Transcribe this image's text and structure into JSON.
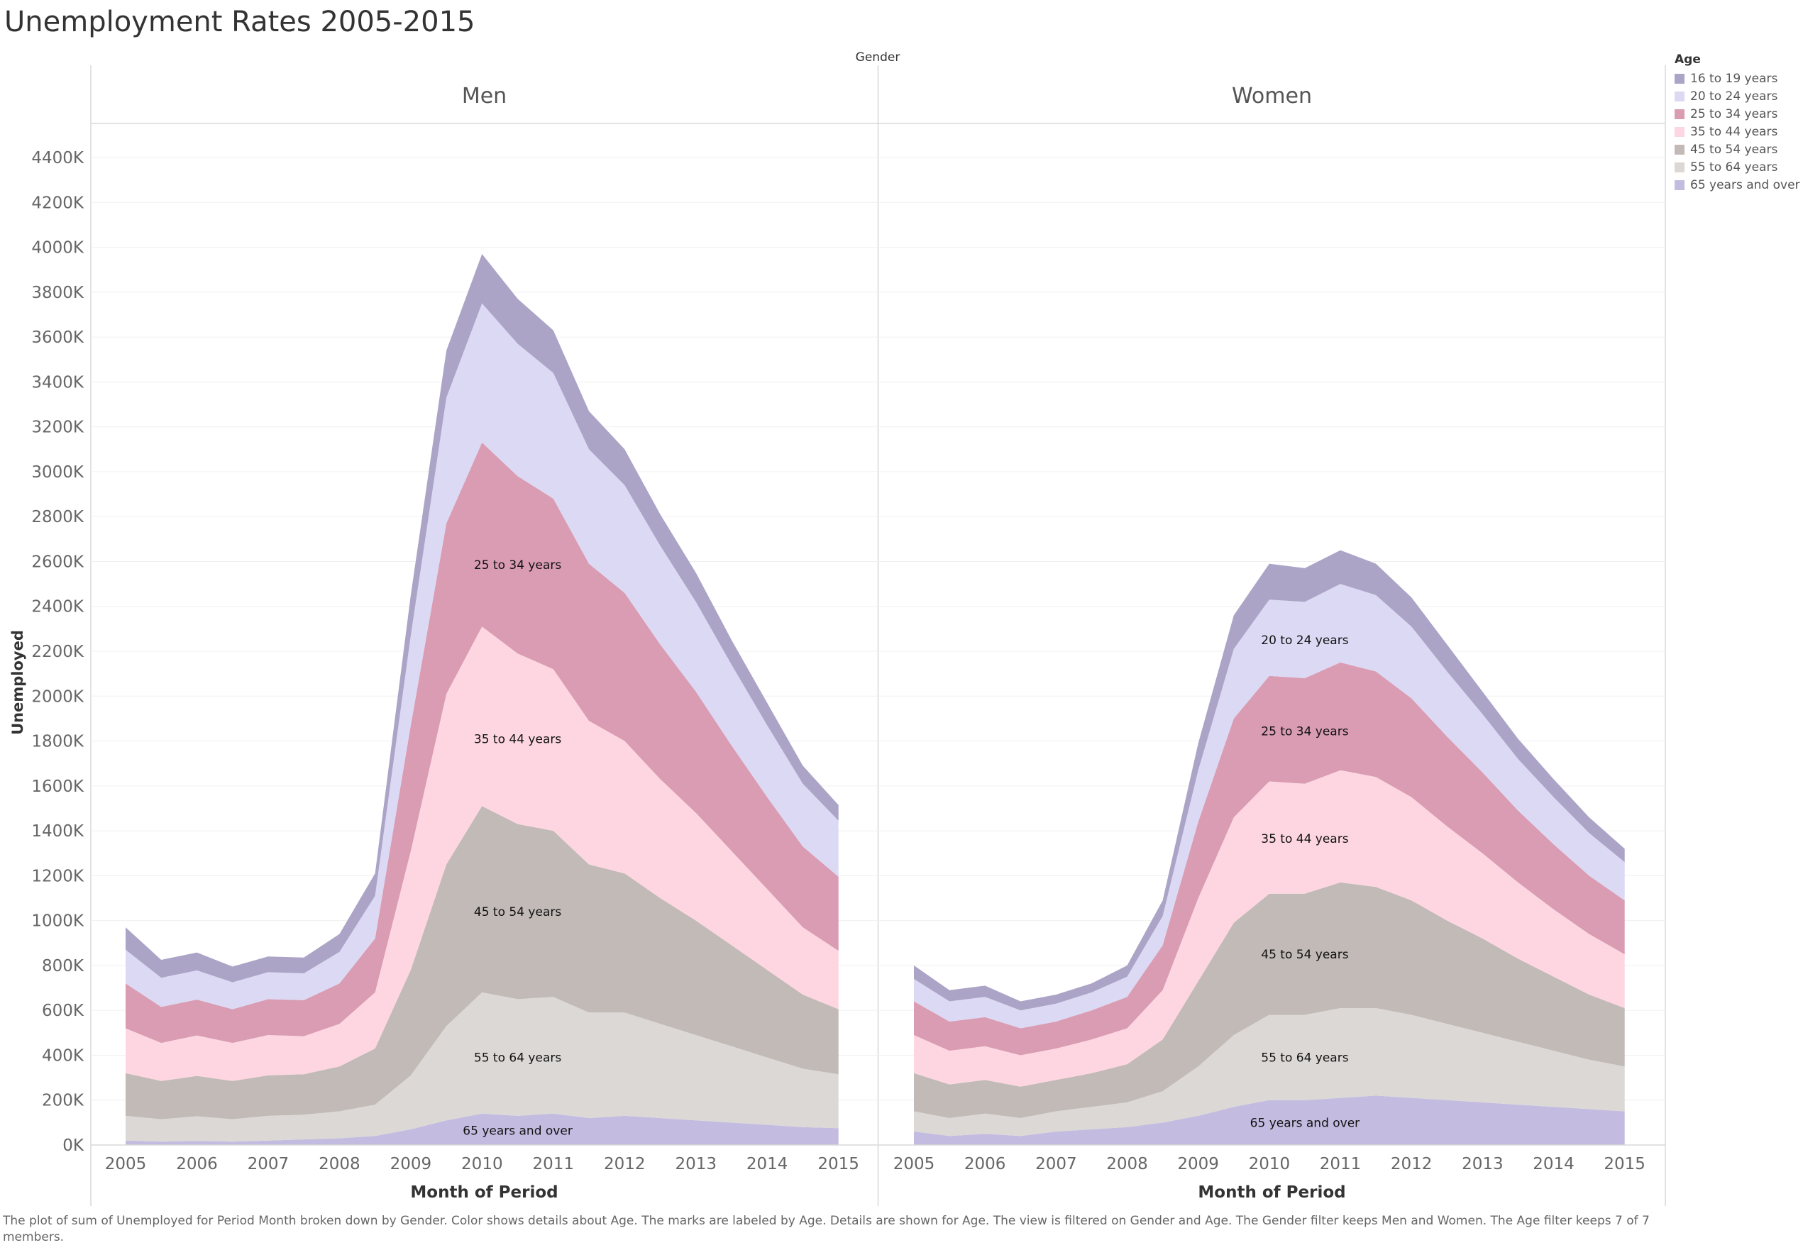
{
  "title": "Unemployment Rates 2005-2015",
  "footnote": "The plot of sum of Unemployed for Period Month broken down by Gender.  Color shows details about Age.  The marks are labeled by Age.  Details are shown for Age. The view is filtered on Gender and Age. The Gender filter keeps Men and Women. The Age filter keeps 7 of 7 members.",
  "legend": {
    "title": "Age",
    "items": [
      {
        "label": "16 to 19 years",
        "color": "#aba4c6"
      },
      {
        "label": "20 to 24 years",
        "color": "#dcd9f4"
      },
      {
        "label": "25 to 34 years",
        "color": "#d99cb2"
      },
      {
        "label": "35 to 44 years",
        "color": "#fdd6e1"
      },
      {
        "label": "45 to 54 years",
        "color": "#c1bab6"
      },
      {
        "label": "55 to 64 years",
        "color": "#dcd8d6"
      },
      {
        "label": "65 years and over",
        "color": "#c4bce0"
      }
    ]
  },
  "chart_data": {
    "type": "area",
    "stacked": true,
    "column_header": "Gender",
    "ylabel": "Unemployed",
    "xlabel": "Month of Period",
    "ylim": [
      0,
      4400
    ],
    "yticks": [
      0,
      200,
      400,
      600,
      800,
      1000,
      1200,
      1400,
      1600,
      1800,
      2000,
      2200,
      2400,
      2600,
      2800,
      3000,
      3200,
      3400,
      3600,
      3800,
      4000,
      4200,
      4400
    ],
    "ytick_suffix": "K",
    "xticks": [
      "2005",
      "2006",
      "2007",
      "2008",
      "2009",
      "2010",
      "2011",
      "2012",
      "2013",
      "2014",
      "2015"
    ],
    "xlim": [
      2005.0,
      2015.083
    ],
    "grid": "horizontal",
    "legend_position": "right",
    "series_order": [
      "65 years and over",
      "55 to 64 years",
      "45 to 54 years",
      "35 to 44 years",
      "25 to 34 years",
      "20 to 24 years",
      "16 to 19 years"
    ],
    "panels": [
      {
        "name": "Men",
        "x": [
          2005.0,
          2005.5,
          2006.0,
          2006.5,
          2007.0,
          2007.5,
          2008.0,
          2008.5,
          2009.0,
          2009.5,
          2010.0,
          2010.5,
          2011.0,
          2011.5,
          2012.0,
          2012.5,
          2013.0,
          2013.5,
          2014.0,
          2014.5,
          2015.0
        ],
        "series": [
          {
            "name": "65 years and over",
            "values": [
              20,
              15,
              18,
              15,
              20,
              25,
              30,
              40,
              70,
              110,
              140,
              130,
              140,
              120,
              130,
              120,
              110,
              100,
              90,
              80,
              75
            ]
          },
          {
            "name": "55 to 64 years",
            "values": [
              110,
              100,
              110,
              100,
              110,
              110,
              120,
              140,
              240,
              420,
              540,
              520,
              520,
              470,
              460,
              420,
              380,
              340,
              300,
              260,
              240
            ]
          },
          {
            "name": "45 to 54 years",
            "values": [
              190,
              170,
              180,
              170,
              180,
              180,
              200,
              250,
              470,
              720,
              830,
              780,
              740,
              660,
              620,
              560,
              510,
              450,
              390,
              330,
              290
            ]
          },
          {
            "name": "35 to 44 years",
            "values": [
              200,
              170,
              180,
              170,
              180,
              170,
              190,
              250,
              530,
              760,
              800,
              760,
              720,
              640,
              590,
              530,
              480,
              420,
              360,
              300,
              260
            ]
          },
          {
            "name": "25 to 34 years",
            "values": [
              200,
              160,
              160,
              150,
              160,
              160,
              180,
              240,
              560,
              760,
              820,
              790,
              760,
              700,
              660,
              600,
              540,
              470,
              410,
              360,
              330
            ]
          },
          {
            "name": "20 to 24 years",
            "values": [
              150,
              130,
              130,
              120,
              120,
              120,
              140,
              190,
              400,
              560,
              620,
              590,
              560,
              510,
              480,
              440,
              400,
              360,
              320,
              280,
              250
            ]
          },
          {
            "name": "16 to 19 years",
            "values": [
              100,
              80,
              80,
              70,
              70,
              70,
              80,
              100,
              180,
              210,
              220,
              200,
              190,
              170,
              160,
              140,
              130,
              110,
              100,
              80,
              70
            ]
          }
        ]
      },
      {
        "name": "Women",
        "x": [
          2005.0,
          2005.5,
          2006.0,
          2006.5,
          2007.0,
          2007.5,
          2008.0,
          2008.5,
          2009.0,
          2009.5,
          2010.0,
          2010.5,
          2011.0,
          2011.5,
          2012.0,
          2012.5,
          2013.0,
          2013.5,
          2014.0,
          2014.5,
          2015.0
        ],
        "series": [
          {
            "name": "65 years and over",
            "values": [
              60,
              40,
              50,
              40,
              60,
              70,
              80,
              100,
              130,
              170,
              200,
              200,
              210,
              220,
              210,
              200,
              190,
              180,
              170,
              160,
              150
            ]
          },
          {
            "name": "55 to 64 years",
            "values": [
              90,
              80,
              90,
              80,
              90,
              100,
              110,
              140,
              220,
              320,
              380,
              380,
              400,
              390,
              370,
              340,
              310,
              280,
              250,
              220,
              200
            ]
          },
          {
            "name": "45 to 54 years",
            "values": [
              170,
              150,
              150,
              140,
              140,
              150,
              170,
              230,
              380,
              500,
              540,
              540,
              560,
              540,
              510,
              460,
              420,
              370,
              330,
              290,
              260
            ]
          },
          {
            "name": "35 to 44 years",
            "values": [
              170,
              150,
              150,
              140,
              140,
              150,
              160,
              220,
              370,
              470,
              500,
              490,
              500,
              490,
              460,
              420,
              380,
              340,
              300,
              270,
              240
            ]
          },
          {
            "name": "25 to 34 years",
            "values": [
              150,
              130,
              130,
              120,
              120,
              130,
              140,
              200,
              340,
              440,
              470,
              470,
              480,
              470,
              440,
              400,
              360,
              320,
              290,
              260,
              240
            ]
          },
          {
            "name": "20 to 24 years",
            "values": [
              100,
              90,
              90,
              80,
              80,
              80,
              90,
              130,
              230,
              310,
              340,
              340,
              350,
              340,
              320,
              290,
              260,
              230,
              210,
              190,
              170
            ]
          },
          {
            "name": "16 to 19 years",
            "values": [
              60,
              50,
              50,
              40,
              40,
              40,
              50,
              70,
              120,
              150,
              160,
              150,
              150,
              140,
              130,
              120,
              100,
              90,
              80,
              70,
              60
            ]
          }
        ]
      }
    ],
    "mark_labels": [
      {
        "panel": "Men",
        "text": "25 to 34 years"
      },
      {
        "panel": "Men",
        "text": "35 to 44 years"
      },
      {
        "panel": "Men",
        "text": "45 to 54 years"
      },
      {
        "panel": "Men",
        "text": "55 to 64 years"
      },
      {
        "panel": "Men",
        "text": "65 years and over"
      },
      {
        "panel": "Women",
        "text": "20 to 24 years"
      },
      {
        "panel": "Women",
        "text": "25 to 34 years"
      },
      {
        "panel": "Women",
        "text": "35 to 44 years"
      },
      {
        "panel": "Women",
        "text": "45 to 54 years"
      },
      {
        "panel": "Women",
        "text": "55 to 64 years"
      },
      {
        "panel": "Women",
        "text": "65 years and over"
      }
    ]
  }
}
